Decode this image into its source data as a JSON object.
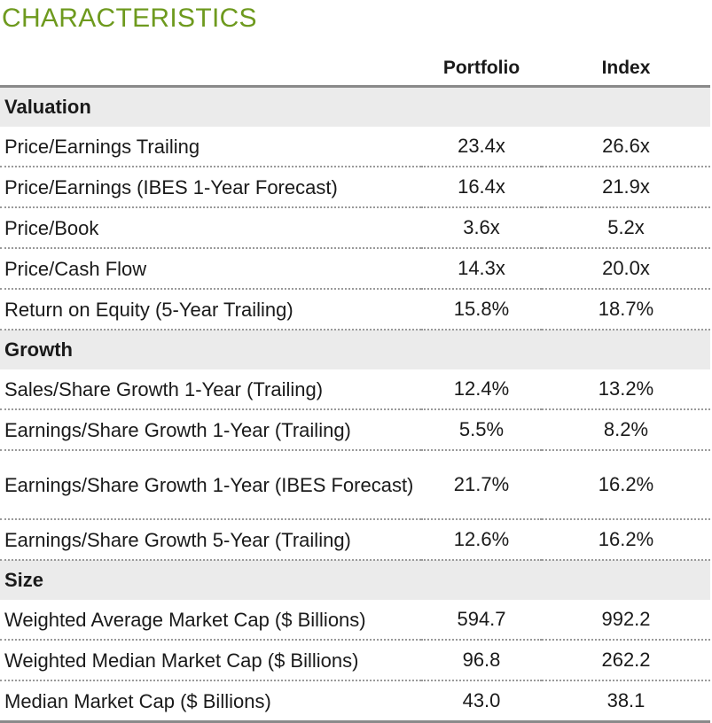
{
  "title": "CHARACTERISTICS",
  "columns": {
    "portfolio": "Portfolio",
    "index": "Index"
  },
  "sections": [
    {
      "label": "Valuation",
      "rows": [
        {
          "label": "Price/Earnings Trailing",
          "portfolio": "23.4x",
          "index": "26.6x"
        },
        {
          "label": "Price/Earnings (IBES 1-Year Forecast)",
          "portfolio": "16.4x",
          "index": "21.9x"
        },
        {
          "label": "Price/Book",
          "portfolio": "3.6x",
          "index": "5.2x"
        },
        {
          "label": "Price/Cash Flow",
          "portfolio": "14.3x",
          "index": "20.0x"
        },
        {
          "label": "Return on Equity (5-Year Trailing)",
          "portfolio": "15.8%",
          "index": "18.7%"
        }
      ]
    },
    {
      "label": "Growth",
      "rows": [
        {
          "label": "Sales/Share Growth 1-Year (Trailing)",
          "portfolio": "12.4%",
          "index": "13.2%"
        },
        {
          "label": "Earnings/Share Growth 1-Year (Trailing)",
          "portfolio": "5.5%",
          "index": "8.2%"
        },
        {
          "label": "Earnings/Share Growth 1-Year (IBES Forecast)",
          "portfolio": "21.7%",
          "index": "16.2%"
        },
        {
          "label": "Earnings/Share Growth 5-Year (Trailing)",
          "portfolio": "12.6%",
          "index": "16.2%"
        }
      ]
    },
    {
      "label": "Size",
      "rows": [
        {
          "label": "Weighted Average Market Cap ($ Billions)",
          "portfolio": "594.7",
          "index": "992.2"
        },
        {
          "label": "Weighted Median Market Cap ($ Billions)",
          "portfolio": "96.8",
          "index": "262.2"
        },
        {
          "label": "Median Market Cap ($ Billions)",
          "portfolio": "43.0",
          "index": "38.1"
        }
      ]
    }
  ]
}
